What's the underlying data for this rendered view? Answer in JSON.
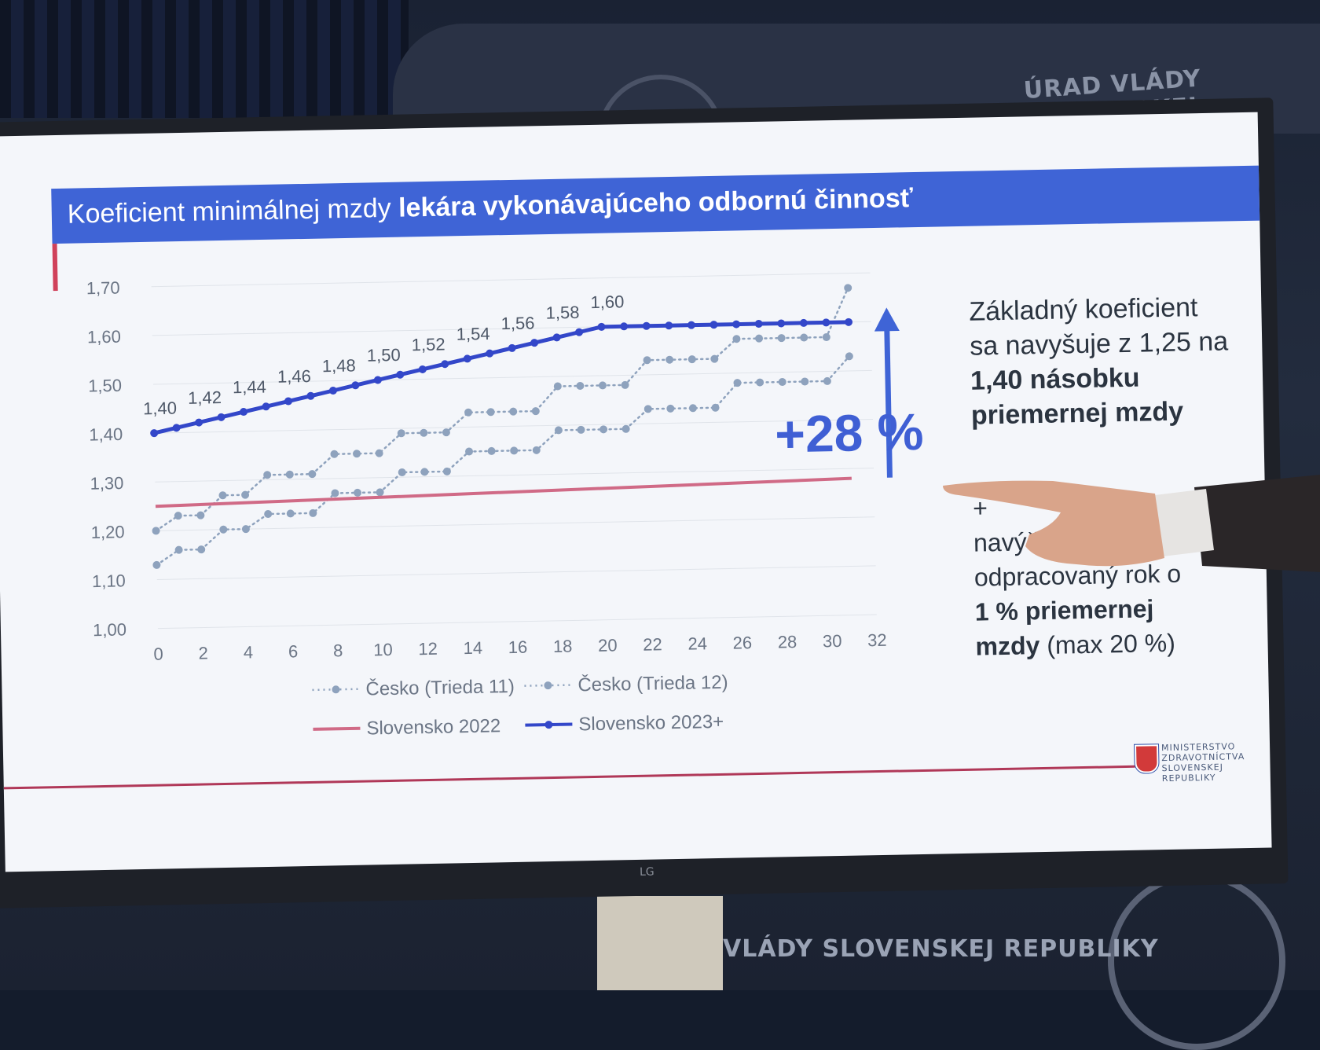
{
  "background": {
    "label_top": "ÚRAD VLÁDY SLOVENSKEJ REPUBLIKY",
    "label_bottom": "VLÁDY SLOVENSKEJ REPUBLIKY",
    "monitor_brand": "LG"
  },
  "slide": {
    "title_regular": "Koeficient minimálnej mzdy ",
    "title_bold": "lekára vykonávajúceho odbornú činnosť",
    "increase_label": "+28 %",
    "callout_1": {
      "line1": "Základný koeficient",
      "line2": "sa navyšuje z 1,25 na",
      "bold1": "1,40 násobku",
      "bold2": "priemernej mzdy"
    },
    "callout_2": {
      "plus": "+",
      "line1": "navýšenie za každý",
      "line2": "odpracovaný rok o",
      "bold1": "1 % priemernej",
      "bold2": "mzdy",
      "suffix": " (max 20 %)"
    },
    "ministry": {
      "line1": "MINISTERSTVO",
      "line2": "ZDRAVOTNÍCTVA",
      "line3": "SLOVENSKEJ REPUBLIKY"
    },
    "colors": {
      "title_bar": "#3f64d6",
      "sk2023": "#3347c9",
      "sk2022": "#d06a86",
      "cz": "#8ea2bd"
    }
  },
  "chart_data": {
    "type": "line",
    "title": "Koeficient minimálnej mzdy lekára vykonávajúceho odbornú činnosť",
    "xlabel": "",
    "ylabel": "",
    "xlim": [
      0,
      32
    ],
    "ylim": [
      1.0,
      1.7
    ],
    "x_ticks": [
      "0",
      "2",
      "4",
      "6",
      "8",
      "10",
      "12",
      "14",
      "16",
      "18",
      "20",
      "22",
      "24",
      "26",
      "28",
      "30",
      "32"
    ],
    "y_ticks": [
      "1,00",
      "1,10",
      "1,20",
      "1,30",
      "1,40",
      "1,50",
      "1,60",
      "1,70"
    ],
    "grid": true,
    "legend_position": "bottom",
    "series": [
      {
        "name": "Česko (Trieda 11)",
        "style": "dotted-markers",
        "x": [
          0,
          1,
          2,
          3,
          4,
          5,
          6,
          7,
          8,
          9,
          10,
          11,
          12,
          13,
          14,
          15,
          16,
          17,
          18,
          19,
          20,
          21,
          22,
          23,
          24,
          25,
          26,
          27,
          28,
          29,
          30,
          31
        ],
        "y": [
          1.13,
          1.16,
          1.16,
          1.2,
          1.2,
          1.23,
          1.23,
          1.23,
          1.27,
          1.27,
          1.27,
          1.31,
          1.31,
          1.31,
          1.35,
          1.35,
          1.35,
          1.35,
          1.39,
          1.39,
          1.39,
          1.39,
          1.43,
          1.43,
          1.43,
          1.43,
          1.48,
          1.48,
          1.48,
          1.48,
          1.48,
          1.53
        ]
      },
      {
        "name": "Česko (Trieda 12)",
        "style": "dotted-markers",
        "x": [
          0,
          1,
          2,
          3,
          4,
          5,
          6,
          7,
          8,
          9,
          10,
          11,
          12,
          13,
          14,
          15,
          16,
          17,
          18,
          19,
          20,
          21,
          22,
          23,
          24,
          25,
          26,
          27,
          28,
          29,
          30,
          31
        ],
        "y": [
          1.2,
          1.23,
          1.23,
          1.27,
          1.27,
          1.31,
          1.31,
          1.31,
          1.35,
          1.35,
          1.35,
          1.39,
          1.39,
          1.39,
          1.43,
          1.43,
          1.43,
          1.43,
          1.48,
          1.48,
          1.48,
          1.48,
          1.53,
          1.53,
          1.53,
          1.53,
          1.57,
          1.57,
          1.57,
          1.57,
          1.57,
          1.67
        ]
      },
      {
        "name": "Slovensko 2022",
        "style": "solid",
        "x": [
          0,
          31
        ],
        "y": [
          1.25,
          1.28
        ]
      },
      {
        "name": "Slovensko 2023+",
        "style": "solid-markers",
        "x": [
          0,
          1,
          2,
          3,
          4,
          5,
          6,
          7,
          8,
          9,
          10,
          11,
          12,
          13,
          14,
          15,
          16,
          17,
          18,
          19,
          20,
          21,
          22,
          23,
          24,
          25,
          26,
          27,
          28,
          29,
          30,
          31
        ],
        "y": [
          1.4,
          1.41,
          1.42,
          1.43,
          1.44,
          1.45,
          1.46,
          1.47,
          1.48,
          1.49,
          1.5,
          1.51,
          1.52,
          1.53,
          1.54,
          1.55,
          1.56,
          1.57,
          1.58,
          1.59,
          1.6,
          1.6,
          1.6,
          1.6,
          1.6,
          1.6,
          1.6,
          1.6,
          1.6,
          1.6,
          1.6,
          1.6
        ]
      }
    ],
    "data_labels": [
      {
        "x": 0,
        "text": "1,40"
      },
      {
        "x": 2,
        "text": "1,42"
      },
      {
        "x": 4,
        "text": "1,44"
      },
      {
        "x": 6,
        "text": "1,46"
      },
      {
        "x": 8,
        "text": "1,48"
      },
      {
        "x": 10,
        "text": "1,50"
      },
      {
        "x": 12,
        "text": "1,52"
      },
      {
        "x": 14,
        "text": "1,54"
      },
      {
        "x": 16,
        "text": "1,56"
      },
      {
        "x": 18,
        "text": "1,58"
      },
      {
        "x": 20,
        "text": "1,60"
      }
    ]
  }
}
